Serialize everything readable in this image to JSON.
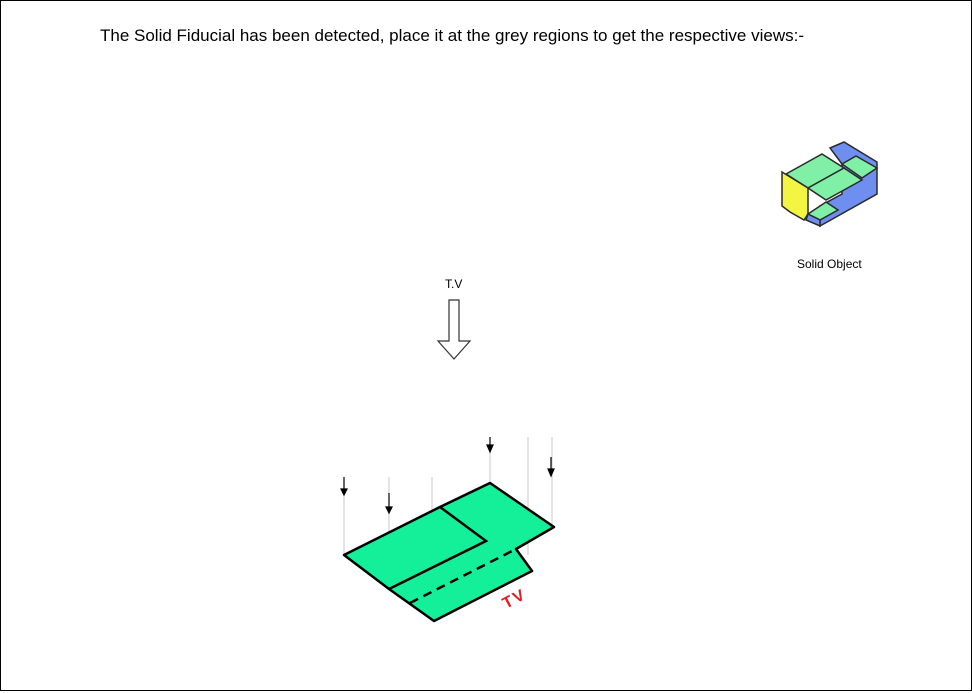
{
  "instruction": {
    "text": "The Solid Fiducial has been detected, place it at the grey regions to get the respective views:-"
  },
  "solid_object": {
    "label": "Solid Object",
    "icon": "solid-object-isometric",
    "colors": {
      "top_face": "#7ff0a6",
      "side_face": "#6f8ff0",
      "front_face": "#f3f542",
      "edge": "#2a2a2a"
    }
  },
  "view_indicator": {
    "label": "T.V",
    "icon": "down-arrow-outline"
  },
  "top_view": {
    "label": "TV",
    "colors": {
      "fill": "#14f09a",
      "outline": "#000000",
      "label": "#e02020",
      "projector": "#c8c8c8"
    }
  }
}
